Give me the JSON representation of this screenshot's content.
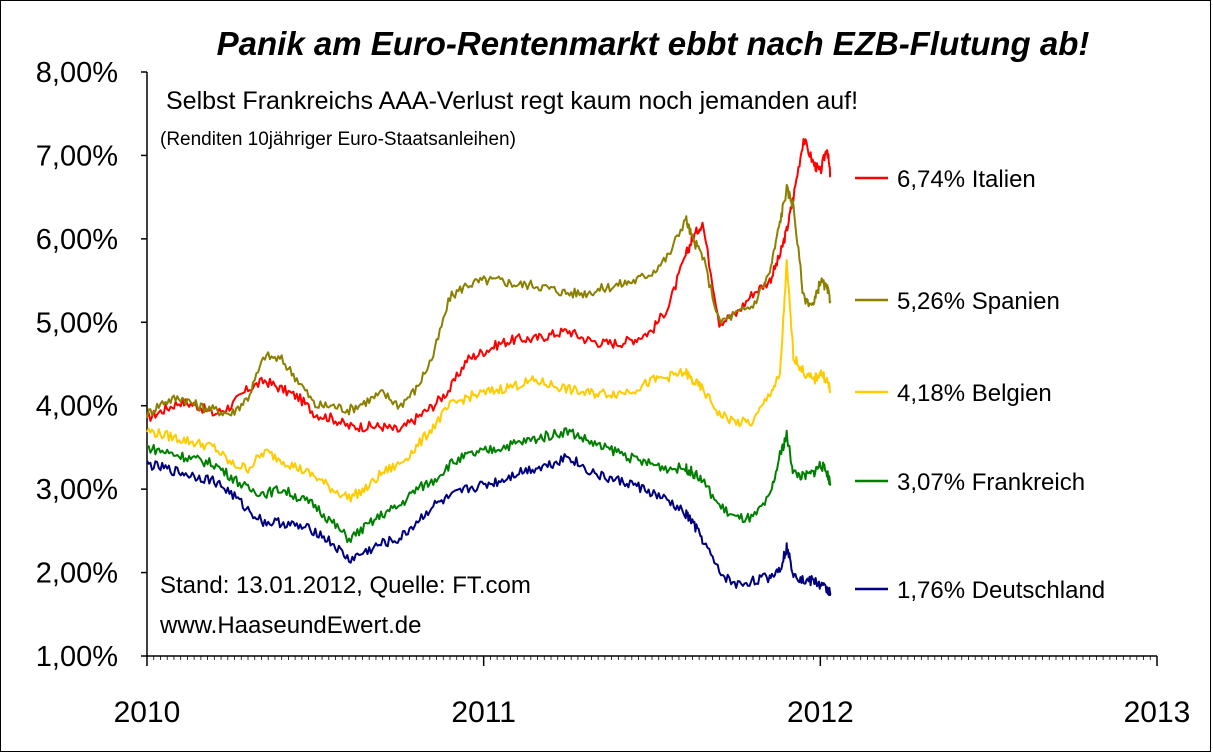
{
  "chart_data": {
    "type": "line",
    "title": "Panik am Euro-Rentenmarkt ebbt nach EZB-Flutung ab!",
    "subtitle": "Selbst Frankreichs AAA-Verlust regt kaum noch jemanden auf!",
    "note": "(Renditen 10jähriger Euro-Staatsanleihen)",
    "source": "Stand: 13.01.2012, Quelle: FT.com",
    "website": "www.HaaseundEwert.de",
    "x_ticks": [
      "2010",
      "2011",
      "2012",
      "2013"
    ],
    "y_ticks": [
      "1,00%",
      "2,00%",
      "3,00%",
      "4,00%",
      "5,00%",
      "6,00%",
      "7,00%",
      "8,00%"
    ],
    "ylim": [
      1,
      8
    ],
    "xlim": [
      2010,
      2013
    ],
    "grid": false,
    "legend_placement": "right",
    "x": [
      2010.0,
      2010.05,
      2010.1,
      2010.15,
      2010.2,
      2010.25,
      2010.3,
      2010.35,
      2010.4,
      2010.45,
      2010.5,
      2010.55,
      2010.6,
      2010.65,
      2010.7,
      2010.75,
      2010.8,
      2010.85,
      2010.9,
      2010.95,
      2011.0,
      2011.05,
      2011.1,
      2011.15,
      2011.2,
      2011.25,
      2011.3,
      2011.35,
      2011.4,
      2011.45,
      2011.5,
      2011.55,
      2011.6,
      2011.62,
      2011.65,
      2011.7,
      2011.75,
      2011.8,
      2011.85,
      2011.88,
      2011.9,
      2011.92,
      2011.95,
      2011.98,
      2012.0,
      2012.02,
      2012.03
    ],
    "series": [
      {
        "name": "Italien",
        "legend_label": "6,74% Italien",
        "color": "#ff0000",
        "values": [
          3.85,
          3.95,
          4.05,
          4.0,
          3.9,
          4.0,
          4.2,
          4.3,
          4.2,
          4.1,
          3.9,
          3.85,
          3.75,
          3.75,
          3.75,
          3.7,
          3.85,
          4.0,
          4.2,
          4.55,
          4.65,
          4.75,
          4.8,
          4.8,
          4.85,
          4.9,
          4.8,
          4.75,
          4.75,
          4.8,
          4.9,
          5.2,
          5.8,
          6.0,
          6.2,
          5.0,
          5.1,
          5.35,
          5.5,
          5.8,
          6.1,
          6.5,
          7.2,
          6.9,
          6.8,
          7.1,
          6.74
        ]
      },
      {
        "name": "Spanien",
        "legend_label": "5,26% Spanien",
        "color": "#8b8000",
        "values": [
          3.9,
          4.05,
          4.1,
          4.0,
          3.95,
          3.9,
          4.1,
          4.6,
          4.55,
          4.3,
          4.0,
          4.0,
          3.95,
          4.05,
          4.15,
          4.0,
          4.2,
          4.6,
          5.3,
          5.45,
          5.5,
          5.5,
          5.45,
          5.45,
          5.4,
          5.35,
          5.35,
          5.4,
          5.45,
          5.5,
          5.6,
          5.8,
          6.25,
          6.0,
          5.8,
          5.0,
          5.1,
          5.2,
          5.6,
          6.2,
          6.6,
          6.4,
          5.3,
          5.2,
          5.5,
          5.4,
          5.26
        ]
      },
      {
        "name": "Belgien",
        "legend_label": "4,18% Belgien",
        "color": "#ffcc00",
        "values": [
          3.7,
          3.65,
          3.6,
          3.55,
          3.5,
          3.3,
          3.25,
          3.45,
          3.35,
          3.25,
          3.15,
          3.0,
          2.9,
          3.0,
          3.2,
          3.3,
          3.5,
          3.75,
          4.0,
          4.1,
          4.15,
          4.2,
          4.25,
          4.3,
          4.25,
          4.2,
          4.15,
          4.15,
          4.15,
          4.2,
          4.3,
          4.35,
          4.4,
          4.3,
          4.2,
          3.9,
          3.8,
          3.8,
          4.15,
          4.35,
          5.7,
          4.6,
          4.4,
          4.3,
          4.4,
          4.3,
          4.18
        ]
      },
      {
        "name": "Frankreich",
        "legend_label": "3,07% Frankreich",
        "color": "#008000",
        "values": [
          3.5,
          3.45,
          3.4,
          3.35,
          3.3,
          3.15,
          3.0,
          2.95,
          3.0,
          2.9,
          2.8,
          2.6,
          2.4,
          2.55,
          2.7,
          2.8,
          3.0,
          3.1,
          3.3,
          3.4,
          3.45,
          3.5,
          3.55,
          3.6,
          3.65,
          3.7,
          3.6,
          3.5,
          3.45,
          3.35,
          3.3,
          3.25,
          3.25,
          3.2,
          3.1,
          2.8,
          2.65,
          2.65,
          2.9,
          3.4,
          3.65,
          3.2,
          3.15,
          3.2,
          3.3,
          3.2,
          3.07
        ]
      },
      {
        "name": "Deutschland",
        "legend_label": "1,76% Deutschland",
        "color": "#00007f",
        "values": [
          3.3,
          3.25,
          3.2,
          3.15,
          3.1,
          2.95,
          2.75,
          2.6,
          2.6,
          2.55,
          2.5,
          2.35,
          2.15,
          2.25,
          2.35,
          2.4,
          2.6,
          2.8,
          2.9,
          3.0,
          3.05,
          3.1,
          3.2,
          3.25,
          3.3,
          3.4,
          3.25,
          3.15,
          3.1,
          3.05,
          2.95,
          2.85,
          2.7,
          2.6,
          2.4,
          2.0,
          1.85,
          1.9,
          1.95,
          2.05,
          2.3,
          2.0,
          1.9,
          1.9,
          1.85,
          1.8,
          1.76
        ]
      }
    ]
  }
}
